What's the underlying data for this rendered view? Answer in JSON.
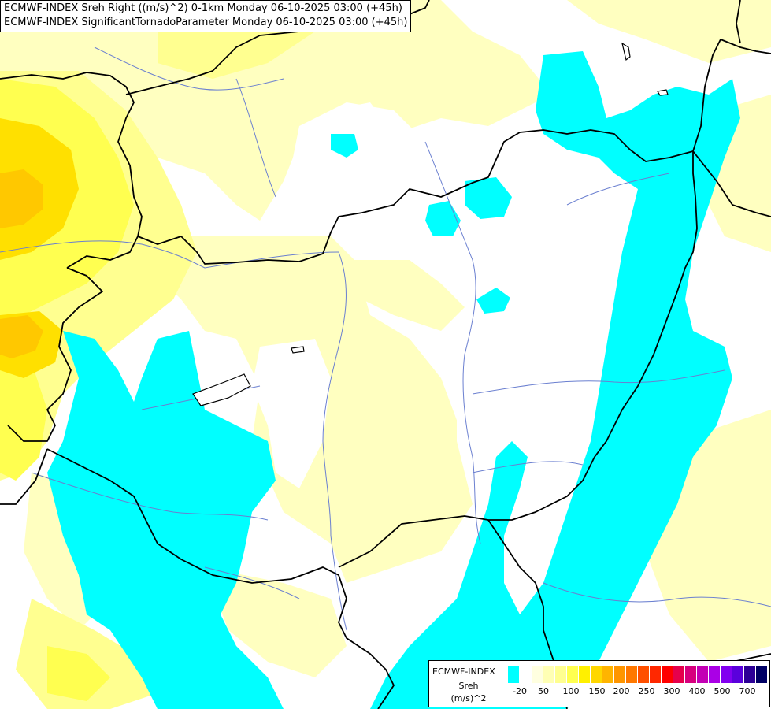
{
  "header": {
    "line1": "ECMWF-INDEX Sreh Right ((m/s)^2) 0-1km Monday 06-10-2025 03:00 (+45h)",
    "line2": "ECMWF-INDEX SignificantTornadoParameter Monday 06-10-2025 03:00 (+45h)"
  },
  "legend": {
    "brand": "ECMWF-INDEX",
    "parameter": "Sreh",
    "unit": "(m/s)^2",
    "colors": [
      "#00ffff",
      "#ffffff",
      "#ffffe0",
      "#ffffb4",
      "#ffff90",
      "#ffff50",
      "#fff000",
      "#ffd700",
      "#ffb400",
      "#ff9600",
      "#ff7800",
      "#ff5000",
      "#ff2800",
      "#ff0000",
      "#e6004b",
      "#d7007d",
      "#c300b4",
      "#aa00e6",
      "#8200f0",
      "#5a00dc",
      "#2d0096",
      "#000064"
    ],
    "labels": [
      "-20",
      "50",
      "100",
      "150",
      "200",
      "250",
      "300",
      "400",
      "500",
      "700"
    ]
  },
  "palette": {
    "cyan": "#00ffff",
    "pale_yellow": "#ffffc0",
    "light_yellow": "#ffff90",
    "yellow": "#ffff50",
    "gold": "#ffd700",
    "orange": "#ffb400",
    "border": "#000000",
    "river": "#6a7fd0"
  }
}
